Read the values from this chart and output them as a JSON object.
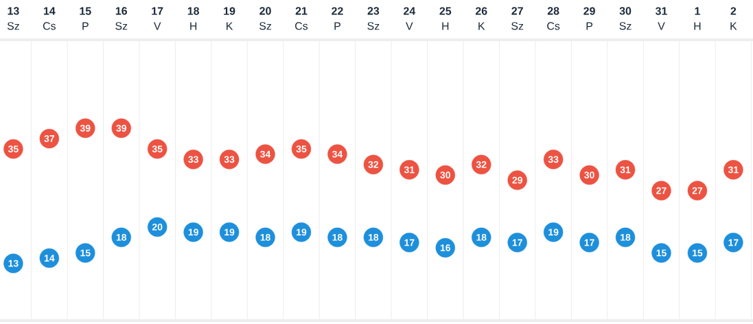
{
  "chart_data": {
    "type": "scatter",
    "categories": [
      "**13** Sz",
      "**14** Cs",
      "**15** P",
      "**16** Sz",
      "**17** V",
      "**18** H",
      "**19** K",
      "**20** Sz",
      "**21** Cs",
      "**22** P",
      "**23** Sz",
      "**24** V",
      "**25** H",
      "**26** K",
      "**27** Sz",
      "**28** Cs",
      "**29** P",
      "**30** Sz",
      "**31** V",
      "**1** H",
      "**2** K"
    ],
    "series": [
      {
        "color": "#ec5342",
        "values": [
          35,
          37,
          39,
          39,
          35,
          33,
          33,
          34,
          35,
          34,
          32,
          31,
          30,
          32,
          29,
          33,
          30,
          31,
          27,
          27,
          31
        ]
      },
      {
        "color": "#1e8fdb",
        "values": [
          13,
          14,
          15,
          18,
          20,
          19,
          19,
          18,
          19,
          18,
          18,
          17,
          16,
          18,
          17,
          19,
          17,
          18,
          15,
          15,
          17
        ]
      }
    ],
    "tick_labels": "x",
    "data_labels": true,
    "grid": "x",
    "marker": "circle"
  }
}
